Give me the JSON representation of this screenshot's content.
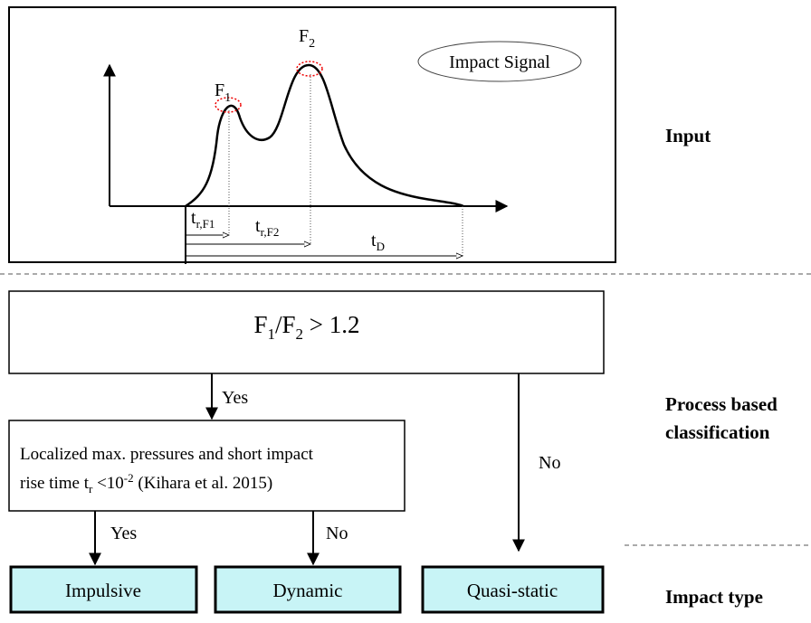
{
  "input_panel": {
    "signal_label": "Impact Signal",
    "peak1": {
      "base": "F",
      "sub": "1"
    },
    "peak2": {
      "base": "F",
      "sub": "2"
    },
    "rise1": {
      "base": "t",
      "sub": "r,F1"
    },
    "rise2": {
      "base": "t",
      "sub": "r,F2"
    },
    "duration": {
      "base": "t",
      "sub": "D"
    }
  },
  "condition": {
    "parts": [
      "F",
      "1",
      "/F",
      "2",
      " > 1.2"
    ]
  },
  "branch_yes": "Yes",
  "branch_no": "No",
  "criterion": {
    "line1": "Localized max. pressures and short impact",
    "line2": [
      "rise time t",
      "r",
      " <10",
      "-2",
      " (Kihara et al. 2015)"
    ]
  },
  "criterion_yes": "Yes",
  "criterion_no": "No",
  "impact_types": [
    "Impulsive",
    "Dynamic",
    "Quasi-static"
  ],
  "stages": {
    "input": "Input",
    "process": [
      "Process based",
      "classification"
    ],
    "output": "Impact type"
  }
}
